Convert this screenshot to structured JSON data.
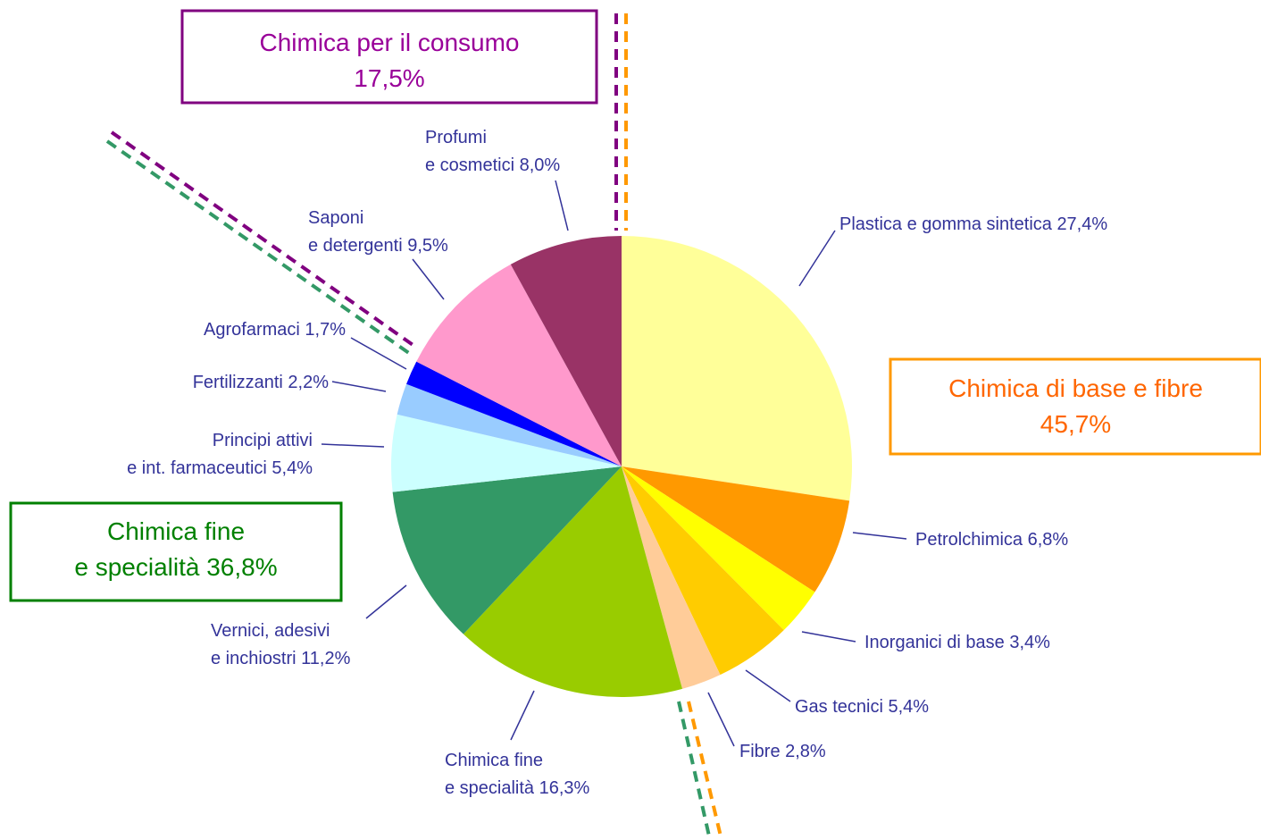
{
  "chart_data": {
    "type": "pie",
    "categories": [
      [
        "Plastica e gomma sintetica"
      ],
      [
        "Petrolchimica"
      ],
      [
        "Inorganici di base"
      ],
      [
        "Gas tecnici"
      ],
      [
        "Fibre"
      ],
      [
        "Chimica fine",
        "e specialità"
      ],
      [
        "Vernici, adesivi",
        "e inchiostri"
      ],
      [
        "Principi attivi",
        "e int. farmaceutici"
      ],
      [
        "Fertilizzanti"
      ],
      [
        "Agrofarmaci"
      ],
      [
        "Saponi",
        "e detergenti"
      ],
      [
        "Profumi",
        "e cosmetici"
      ]
    ],
    "values": [
      27.4,
      6.8,
      3.4,
      5.4,
      2.8,
      16.3,
      11.2,
      5.4,
      2.2,
      1.7,
      9.5,
      8.0
    ],
    "value_labels": [
      "27,4%",
      "6,8%",
      "3,4%",
      "5,4%",
      "2,8%",
      "16,3%",
      "11,2%",
      "5,4%",
      "2,2%",
      "1,7%",
      "9,5%",
      "8,0%"
    ],
    "colors": [
      "#ffff99",
      "#ff9900",
      "#ffff00",
      "#ffcc00",
      "#ffcc99",
      "#99cc00",
      "#339966",
      "#ccffff",
      "#99ccff",
      "#0000ff",
      "#ff99cc",
      "#993366"
    ],
    "groups": [
      {
        "lines": [
          "Chimica per il consumo",
          "17,5%"
        ],
        "color": "#990099",
        "border": "#800080"
      },
      {
        "lines": [
          "Chimica di base e fibre",
          "45,7%"
        ],
        "color": "#ff6600",
        "border": "#ff9900"
      },
      {
        "lines": [
          "Chimica fine",
          "e specialità 36,8%"
        ],
        "color": "#008000",
        "border": "#008000"
      }
    ]
  }
}
